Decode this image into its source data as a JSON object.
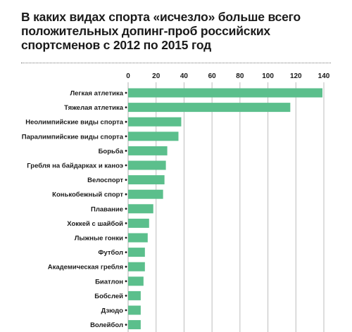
{
  "title": "В каких видах спорта «исчезло» больше всего положительных допинг-проб российских спортсменов с 2012 по 2015 год",
  "colors": {
    "bar": "#5bbf8c",
    "grid": "#bdbdbd",
    "text": "#1a1a1a"
  },
  "chart_data": {
    "type": "bar",
    "orientation": "horizontal",
    "title": "В каких видах спорта «исчезло» больше всего положительных допинг-проб российских спортсменов с 2012 по 2015 год",
    "xlabel": "",
    "ylabel": "",
    "xlim": [
      0,
      140
    ],
    "ticks": [
      0,
      20,
      40,
      60,
      80,
      100,
      120,
      140
    ],
    "grid": true,
    "categories": [
      "Легкая атлетика",
      "Тяжелая атлетика",
      "Неолимпийские виды спорта",
      "Паралимпийские виды спорта",
      "Борьба",
      "Гребля на байдарках и каноэ",
      "Велоспорт",
      "Конькобежный спорт",
      "Плавание",
      "Хоккей с шайбой",
      "Лыжные гонки",
      "Футбол",
      "Академическая гребля",
      "Биатлон",
      "Бобслей",
      "Дзюдо",
      "Волейбол"
    ],
    "values": [
      139,
      116,
      38,
      36,
      28,
      27,
      26,
      25,
      18,
      15,
      14,
      12,
      12,
      11,
      9,
      9,
      9
    ]
  }
}
